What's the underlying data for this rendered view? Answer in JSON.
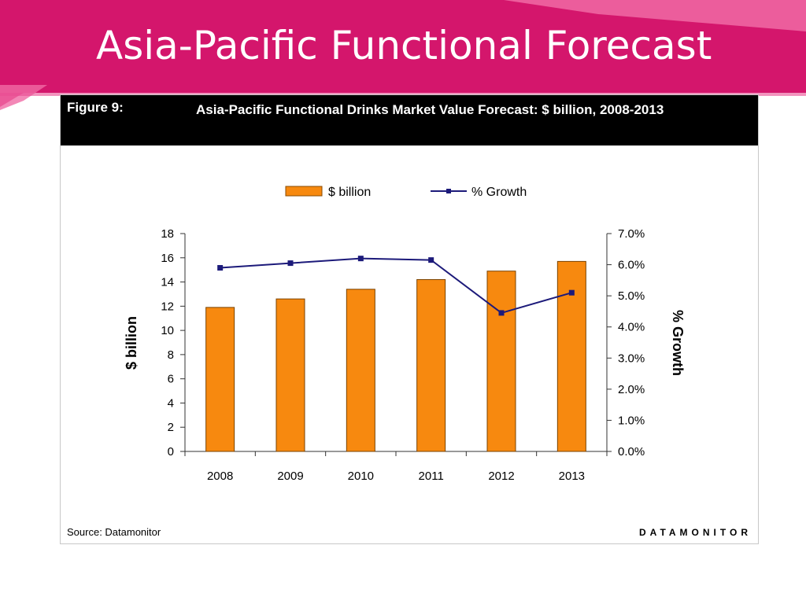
{
  "slide": {
    "title": "Asia-Pacific Functional Forecast",
    "colors": {
      "banner": "#d4166c",
      "banner_light": "#f06aa5",
      "title_text": "#ffffff"
    }
  },
  "figure": {
    "label": "Figure 9:",
    "title": "Asia-Pacific Functional Drinks Market Value Forecast: $ billion, 2008-2013",
    "source": "Source: Datamonitor",
    "brand": "DATAMONITOR"
  },
  "chart_data": {
    "type": "bar",
    "categories": [
      "2008",
      "2009",
      "2010",
      "2011",
      "2012",
      "2013"
    ],
    "series": [
      {
        "name": "$ billion",
        "type": "bar",
        "axis": "left",
        "color": "#f7890f",
        "values": [
          11.9,
          12.6,
          13.4,
          14.2,
          14.9,
          15.7
        ]
      },
      {
        "name": "% Growth",
        "type": "line",
        "axis": "right",
        "color": "#1c1a7a",
        "values": [
          5.9,
          6.05,
          6.2,
          6.15,
          4.45,
          5.1
        ]
      }
    ],
    "ylabel": "$ billion",
    "y2label": "% Growth",
    "ylim": [
      0,
      18
    ],
    "y2lim": [
      0,
      7
    ],
    "yticks": [
      "0",
      "2",
      "4",
      "6",
      "8",
      "10",
      "12",
      "14",
      "16",
      "18"
    ],
    "y2ticks": [
      "0.0%",
      "1.0%",
      "2.0%",
      "3.0%",
      "4.0%",
      "5.0%",
      "6.0%",
      "7.0%"
    ],
    "legend": "top-center",
    "grid": false
  }
}
